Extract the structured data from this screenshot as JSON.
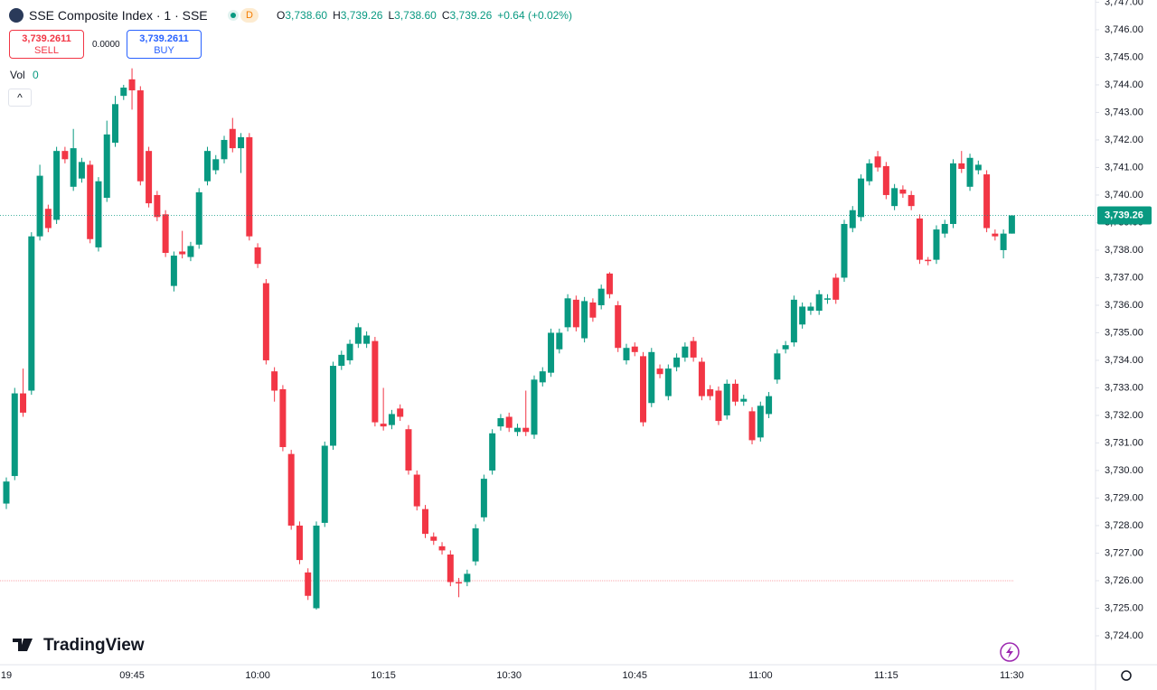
{
  "chart_data": {
    "type": "candlestick",
    "title": "SSE Composite Index · 1 · SSE",
    "interval_badge": "D",
    "ohlc": [
      {
        "label": "O",
        "value": "3,738.60"
      },
      {
        "label": "H",
        "value": "3,739.26"
      },
      {
        "label": "L",
        "value": "3,738.60"
      },
      {
        "label": "C",
        "value": "3,739.26"
      }
    ],
    "change": "+0.64 (+0.02%)",
    "sell_price": "3,739.2611",
    "sell_label": "SELL",
    "spread": "0.0000",
    "buy_price": "3,739.2611",
    "buy_label": "BUY",
    "volume_label": "Vol",
    "volume_value": "0",
    "logo": "TradingView",
    "up_color": "#089981",
    "down_color": "#f23645",
    "last_price": {
      "value": 3739.26,
      "label": "3,739.26"
    },
    "reference_line": 3726,
    "ylim": [
      3722.95,
      3747.08
    ],
    "yticks": [
      {
        "value": 3724,
        "label": "3,724.00"
      },
      {
        "value": 3725,
        "label": "3,725.00"
      },
      {
        "value": 3726,
        "label": "3,726.00"
      },
      {
        "value": 3727,
        "label": "3,727.00"
      },
      {
        "value": 3728,
        "label": "3,728.00"
      },
      {
        "value": 3729,
        "label": "3,729.00"
      },
      {
        "value": 3730,
        "label": "3,730.00"
      },
      {
        "value": 3731,
        "label": "3,731.00"
      },
      {
        "value": 3732,
        "label": "3,732.00"
      },
      {
        "value": 3733,
        "label": "3,733.00"
      },
      {
        "value": 3734,
        "label": "3,734.00"
      },
      {
        "value": 3735,
        "label": "3,735.00"
      },
      {
        "value": 3736,
        "label": "3,736.00"
      },
      {
        "value": 3737,
        "label": "3,737.00"
      },
      {
        "value": 3738,
        "label": "3,738.00"
      },
      {
        "value": 3739,
        "label": "3,739.00"
      },
      {
        "value": 3740,
        "label": "3,740.00"
      },
      {
        "value": 3741,
        "label": "3,741.00"
      },
      {
        "value": 3742,
        "label": "3,742.00"
      },
      {
        "value": 3743,
        "label": "3,743.00"
      },
      {
        "value": 3744,
        "label": "3,744.00"
      },
      {
        "value": 3745,
        "label": "3,745.00"
      },
      {
        "value": 3746,
        "label": "3,746.00"
      },
      {
        "value": 3747,
        "label": "3,747.00"
      }
    ],
    "categories": [
      "19",
      null,
      null,
      null,
      null,
      null,
      null,
      null,
      null,
      null,
      null,
      null,
      null,
      null,
      null,
      "09:45",
      null,
      null,
      null,
      null,
      null,
      null,
      null,
      null,
      null,
      null,
      null,
      null,
      null,
      null,
      "10:00",
      null,
      null,
      null,
      null,
      null,
      null,
      null,
      null,
      null,
      null,
      null,
      null,
      null,
      null,
      "10:15",
      null,
      null,
      null,
      null,
      null,
      null,
      null,
      null,
      null,
      null,
      null,
      null,
      null,
      null,
      "10:30",
      null,
      null,
      null,
      null,
      null,
      null,
      null,
      null,
      null,
      null,
      null,
      null,
      null,
      null,
      "10:45",
      null,
      null,
      null,
      null,
      null,
      null,
      null,
      null,
      null,
      null,
      null,
      null,
      null,
      null,
      "11:00",
      null,
      null,
      null,
      null,
      null,
      null,
      null,
      null,
      null,
      null,
      null,
      null,
      null,
      null,
      "11:15",
      null,
      null,
      null,
      null,
      null,
      null,
      null,
      null,
      null,
      null,
      null,
      null,
      null,
      null,
      "11:30"
    ],
    "open": [
      3728.8,
      3729.8,
      3732.8,
      3732.9,
      3738.5,
      3739.5,
      3739.1,
      3741.6,
      3740.3,
      3740.6,
      3741.1,
      3738.1,
      3739.9,
      3741.9,
      3743.6,
      3744.2,
      3743.8,
      3741.6,
      3740.0,
      3739.3,
      3736.7,
      3737.95,
      3737.75,
      3738.2,
      3740.5,
      3740.9,
      3741.3,
      3742.4,
      3741.7,
      3742.1,
      3738.1,
      3736.8,
      3733.6,
      3732.95,
      3730.6,
      3728.0,
      3726.3,
      3725.0,
      3728.1,
      3730.9,
      3733.8,
      3734.0,
      3734.6,
      3734.6,
      3734.7,
      3731.7,
      3731.65,
      3732.25,
      3731.5,
      3729.85,
      3728.6,
      3727.6,
      3727.25,
      3726.95,
      3725.95,
      3725.95,
      3726.7,
      3728.3,
      3730.0,
      3731.6,
      3731.95,
      3731.4,
      3731.55,
      3731.3,
      3733.2,
      3733.55,
      3734.4,
      3735.2,
      3736.2,
      3734.8,
      3736.1,
      3736.0,
      3737.15,
      3736.0,
      3734.0,
      3734.5,
      3734.15,
      3732.45,
      3733.7,
      3732.7,
      3733.75,
      3734.1,
      3734.7,
      3733.95,
      3732.95,
      3732.9,
      3732.0,
      3733.15,
      3732.5,
      3732.15,
      3731.2,
      3732.05,
      3733.3,
      3734.4,
      3734.65,
      3735.3,
      3735.8,
      3735.8,
      3736.2,
      3737.0,
      3737.0,
      3738.8,
      3739.2,
      3740.5,
      3741.4,
      3741.05,
      3739.6,
      3740.2,
      3740.0,
      3739.15,
      3737.65,
      3737.65,
      3738.6,
      3738.95,
      3741.15,
      3740.3,
      3740.9,
      3740.75,
      3738.6,
      3738.0,
      3738.6
    ],
    "high": [
      3729.75,
      3733.0,
      3733.7,
      3738.65,
      3741.1,
      3739.65,
      3741.75,
      3741.75,
      3742.4,
      3741.35,
      3741.25,
      3740.65,
      3742.7,
      3743.6,
      3744.0,
      3744.6,
      3743.95,
      3741.75,
      3740.15,
      3739.45,
      3737.95,
      3738.7,
      3738.3,
      3740.25,
      3741.75,
      3741.45,
      3742.15,
      3742.8,
      3742.25,
      3742.25,
      3738.25,
      3736.95,
      3733.75,
      3733.1,
      3730.75,
      3728.15,
      3726.45,
      3728.15,
      3731.05,
      3733.95,
      3734.35,
      3734.75,
      3735.35,
      3735.05,
      3734.85,
      3733.0,
      3732.2,
      3732.4,
      3731.65,
      3730.0,
      3728.75,
      3727.75,
      3727.4,
      3727.1,
      3726.1,
      3726.4,
      3728.05,
      3729.85,
      3731.5,
      3732.05,
      3732.1,
      3731.7,
      3732.9,
      3733.45,
      3733.75,
      3735.15,
      3735.15,
      3736.4,
      3736.35,
      3736.3,
      3736.25,
      3736.75,
      3737.2,
      3736.15,
      3734.6,
      3734.65,
      3734.3,
      3734.45,
      3733.85,
      3733.85,
      3734.25,
      3734.65,
      3734.85,
      3734.1,
      3733.1,
      3733.05,
      3733.3,
      3733.3,
      3732.75,
      3732.3,
      3732.5,
      3732.85,
      3734.4,
      3734.7,
      3736.35,
      3736.1,
      3736.1,
      3736.55,
      3736.4,
      3737.15,
      3739.1,
      3739.6,
      3740.75,
      3741.3,
      3741.6,
      3741.2,
      3740.4,
      3740.35,
      3740.15,
      3739.3,
      3737.75,
      3738.9,
      3739.1,
      3741.3,
      3741.6,
      3741.5,
      3741.25,
      3740.9,
      3738.75,
      3738.75,
      3739.26
    ],
    "low": [
      3728.6,
      3729.65,
      3731.95,
      3732.75,
      3738.35,
      3738.65,
      3738.95,
      3741.15,
      3740.15,
      3740.45,
      3738.25,
      3737.95,
      3739.75,
      3741.75,
      3743.45,
      3743.1,
      3740.35,
      3739.55,
      3739.05,
      3737.75,
      3736.5,
      3737.7,
      3737.6,
      3738.05,
      3740.35,
      3740.75,
      3741.15,
      3741.55,
      3740.8,
      3738.35,
      3737.35,
      3733.85,
      3732.5,
      3730.7,
      3727.85,
      3726.6,
      3725.3,
      3724.95,
      3727.95,
      3730.75,
      3733.65,
      3733.85,
      3734.45,
      3734.45,
      3731.6,
      3731.45,
      3731.5,
      3731.8,
      3729.85,
      3728.55,
      3727.55,
      3727.3,
      3726.95,
      3725.8,
      3725.4,
      3725.8,
      3726.55,
      3728.15,
      3729.85,
      3731.45,
      3731.4,
      3731.25,
      3731.25,
      3731.15,
      3733.05,
      3733.4,
      3734.25,
      3735.05,
      3735.05,
      3734.65,
      3735.4,
      3735.85,
      3736.25,
      3734.3,
      3733.85,
      3734.15,
      3731.6,
      3732.3,
      3733.35,
      3732.55,
      3733.6,
      3733.95,
      3733.95,
      3732.55,
      3732.55,
      3731.65,
      3731.85,
      3732.35,
      3732.35,
      3730.95,
      3731.05,
      3731.9,
      3733.15,
      3734.25,
      3734.5,
      3735.15,
      3735.65,
      3735.65,
      3736.05,
      3736.05,
      3736.85,
      3738.65,
      3739.05,
      3740.35,
      3740.85,
      3739.85,
      3739.45,
      3739.9,
      3739.45,
      3737.5,
      3737.45,
      3737.5,
      3738.45,
      3738.8,
      3740.8,
      3740.15,
      3740.75,
      3738.65,
      3738.35,
      3737.7,
      3738.6
    ],
    "close": [
      3729.6,
      3732.8,
      3732.1,
      3738.5,
      3740.7,
      3738.8,
      3741.6,
      3741.3,
      3741.7,
      3741.2,
      3738.4,
      3740.5,
      3742.2,
      3743.3,
      3743.9,
      3743.8,
      3740.5,
      3739.7,
      3739.2,
      3737.9,
      3737.8,
      3737.85,
      3738.15,
      3740.1,
      3741.6,
      3741.3,
      3742.0,
      3741.7,
      3742.1,
      3738.5,
      3737.5,
      3734.0,
      3732.9,
      3730.85,
      3728.0,
      3726.75,
      3725.45,
      3728.0,
      3730.9,
      3733.8,
      3734.2,
      3734.6,
      3735.2,
      3734.9,
      3731.75,
      3731.6,
      3732.05,
      3731.95,
      3730.0,
      3728.7,
      3727.7,
      3727.45,
      3727.1,
      3725.95,
      3725.9,
      3726.25,
      3727.9,
      3729.7,
      3731.35,
      3731.9,
      3731.55,
      3731.55,
      3731.4,
      3733.3,
      3733.6,
      3735.0,
      3735.0,
      3736.25,
      3735.2,
      3736.15,
      3735.55,
      3736.6,
      3736.4,
      3734.45,
      3734.45,
      3734.3,
      3731.75,
      3734.3,
      3733.5,
      3733.7,
      3734.1,
      3734.5,
      3734.1,
      3732.7,
      3732.7,
      3731.8,
      3733.15,
      3732.5,
      3732.6,
      3731.1,
      3732.35,
      3732.7,
      3734.25,
      3734.55,
      3736.2,
      3735.95,
      3735.95,
      3736.4,
      3736.25,
      3736.2,
      3738.95,
      3739.45,
      3740.6,
      3741.15,
      3741.0,
      3740.0,
      3740.25,
      3740.05,
      3739.6,
      3737.65,
      3737.6,
      3738.75,
      3738.95,
      3741.15,
      3740.95,
      3741.35,
      3741.1,
      3738.8,
      3738.5,
      3738.6,
      3739.26
    ]
  }
}
